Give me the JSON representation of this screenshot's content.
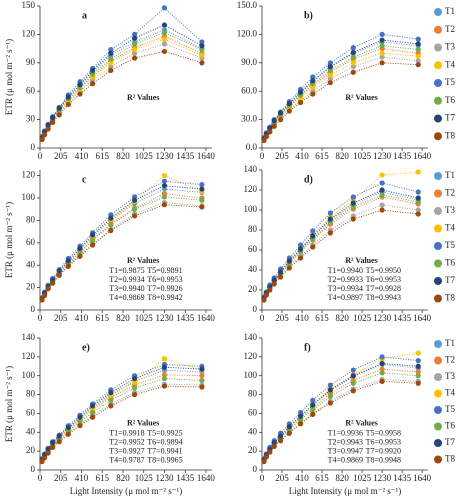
{
  "chart_data": [
    {
      "type": "scatter",
      "panel_label": "a",
      "ylabel": "ETR (μ mol m⁻² s⁻¹)",
      "r2_title": "R² Values",
      "x": [
        20,
        45,
        80,
        125,
        190,
        280,
        395,
        520,
        700,
        935,
        1230,
        1600
      ],
      "xlim": [
        0,
        1700
      ],
      "xticks": [
        0,
        205,
        410,
        615,
        820,
        1025,
        1230,
        1435,
        1640
      ],
      "ylim": [
        0,
        150
      ],
      "yticks": [
        0,
        30,
        60,
        90,
        120,
        150
      ],
      "series": [
        {
          "color": "#5b9bd5",
          "values": [
            11,
            17,
            24,
            32,
            41,
            53,
            66,
            80,
            98,
            112,
            125,
            105
          ]
        },
        {
          "color": "#ed7d31",
          "values": [
            10,
            16,
            23,
            30,
            39,
            51,
            63,
            76,
            92,
            106,
            118,
            100
          ]
        },
        {
          "color": "#a5a5a5",
          "values": [
            9,
            15,
            21,
            28,
            37,
            48,
            60,
            72,
            86,
            100,
            110,
            95
          ]
        },
        {
          "color": "#ffc000",
          "values": [
            10,
            16,
            22,
            30,
            38,
            50,
            62,
            75,
            90,
            104,
            115,
            98
          ]
        },
        {
          "color": "#4472c4",
          "values": [
            12,
            18,
            25,
            33,
            43,
            56,
            70,
            84,
            104,
            120,
            148,
            112
          ]
        },
        {
          "color": "#70ad47",
          "values": [
            10,
            16,
            23,
            31,
            40,
            52,
            64,
            78,
            94,
            110,
            122,
            104
          ]
        },
        {
          "color": "#264478",
          "values": [
            11,
            17,
            24,
            32,
            42,
            54,
            67,
            82,
            100,
            116,
            130,
            108
          ]
        },
        {
          "color": "#9e480e",
          "values": [
            9,
            14,
            20,
            27,
            35,
            46,
            57,
            68,
            82,
            95,
            102,
            90
          ]
        }
      ]
    },
    {
      "type": "scatter",
      "panel_label": "b)",
      "r2_title": "R² Values",
      "x": [
        20,
        45,
        80,
        125,
        190,
        280,
        395,
        520,
        700,
        935,
        1230,
        1600
      ],
      "xlim": [
        0,
        1700
      ],
      "xticks": [
        0,
        205,
        410,
        615,
        820,
        1025,
        1230,
        1435,
        1640
      ],
      "ylim": [
        0,
        150
      ],
      "yticks": [
        {
          "value": 0,
          "label": "0.0"
        },
        {
          "value": 30,
          "label": "30.0"
        },
        {
          "value": 60,
          "label": "60.0"
        },
        {
          "value": 90,
          "label": "90.0"
        },
        {
          "value": 120,
          "label": "120.0"
        },
        {
          "value": 150,
          "label": "150.0"
        }
      ],
      "series": [
        {
          "name": "T1",
          "color": "#5b9bd5",
          "values": [
            10,
            15,
            21,
            28,
            36,
            46,
            58,
            70,
            85,
            100,
            112,
            108
          ]
        },
        {
          "name": "T2",
          "color": "#ed7d31",
          "values": [
            9,
            14,
            20,
            27,
            34,
            44,
            55,
            66,
            80,
            94,
            105,
            100
          ]
        },
        {
          "name": "T3",
          "color": "#a5a5a5",
          "values": [
            8,
            13,
            18,
            25,
            32,
            41,
            50,
            60,
            73,
            86,
            96,
            92
          ]
        },
        {
          "name": "T4",
          "color": "#ffc000",
          "values": [
            9,
            14,
            19,
            26,
            33,
            43,
            53,
            64,
            77,
            90,
            100,
            97
          ]
        },
        {
          "name": "T5",
          "color": "#4472c4",
          "values": [
            11,
            16,
            22,
            30,
            38,
            49,
            62,
            75,
            90,
            106,
            120,
            115
          ]
        },
        {
          "name": "T6",
          "color": "#70ad47",
          "values": [
            9,
            15,
            20,
            27,
            35,
            45,
            56,
            68,
            82,
            96,
            108,
            104
          ]
        },
        {
          "name": "T7",
          "color": "#264478",
          "values": [
            10,
            15,
            21,
            29,
            37,
            47,
            59,
            71,
            86,
            101,
            114,
            110
          ]
        },
        {
          "name": "T8",
          "color": "#9e480e",
          "values": [
            8,
            12,
            17,
            23,
            30,
            39,
            48,
            57,
            69,
            80,
            90,
            88
          ]
        }
      ]
    },
    {
      "type": "scatter",
      "panel_label": "c",
      "ylabel": "ETR (μ mol m⁻² s⁻¹)",
      "r2_title": "R² Values",
      "r2_rows": [
        [
          "T1=0.9875",
          "T5=0.9891"
        ],
        [
          "T2=0.9934",
          "T6=0.9953"
        ],
        [
          "T3=0.9940",
          "T7=0.9926"
        ],
        [
          "T4=0.9869",
          "T8=0.9942"
        ]
      ],
      "x": [
        20,
        45,
        80,
        125,
        190,
        280,
        395,
        520,
        700,
        935,
        1230,
        1600
      ],
      "xlim": [
        0,
        1700
      ],
      "xticks": [
        0,
        205,
        410,
        615,
        820,
        1025,
        1230,
        1435,
        1640
      ],
      "ylim": [
        0,
        125
      ],
      "yticks": [
        0,
        20,
        40,
        60,
        80,
        100,
        120
      ],
      "series": [
        {
          "color": "#5b9bd5",
          "values": [
            10,
            15,
            21,
            27,
            34,
            43,
            54,
            65,
            80,
            95,
            108,
            105
          ]
        },
        {
          "color": "#ed7d31",
          "values": [
            9,
            14,
            20,
            26,
            33,
            42,
            52,
            63,
            77,
            91,
            104,
            100
          ]
        },
        {
          "color": "#a5a5a5",
          "values": [
            9,
            13,
            19,
            25,
            31,
            40,
            49,
            59,
            72,
            86,
            96,
            93
          ]
        },
        {
          "color": "#ffc000",
          "values": [
            10,
            15,
            21,
            27,
            34,
            43,
            54,
            66,
            81,
            97,
            120,
            106
          ]
        },
        {
          "color": "#4472c4",
          "values": [
            11,
            16,
            22,
            28,
            36,
            46,
            57,
            69,
            85,
            101,
            115,
            112
          ]
        },
        {
          "color": "#70ad47",
          "values": [
            9,
            14,
            20,
            26,
            32,
            41,
            51,
            62,
            76,
            90,
            101,
            98
          ]
        },
        {
          "color": "#264478",
          "values": [
            10,
            15,
            21,
            27,
            35,
            44,
            55,
            67,
            82,
            98,
            111,
            108
          ]
        },
        {
          "color": "#9e480e",
          "values": [
            9,
            13,
            19,
            24,
            31,
            39,
            48,
            58,
            71,
            84,
            94,
            92
          ]
        }
      ]
    },
    {
      "type": "scatter",
      "panel_label": "d)",
      "r2_title": "R² Values",
      "r2_rows": [
        [
          "T1=0.9940",
          "T5=0.9950"
        ],
        [
          "T2=0.9933",
          "T6=0.9953"
        ],
        [
          "T3=0.9934",
          "T7=0.9928"
        ],
        [
          "T4=0.9897",
          "T8=0.9943"
        ]
      ],
      "x": [
        20,
        45,
        80,
        125,
        190,
        280,
        395,
        520,
        700,
        935,
        1230,
        1600
      ],
      "xlim": [
        0,
        1700
      ],
      "xticks": [
        0,
        205,
        410,
        615,
        820,
        1025,
        1230,
        1435,
        1640
      ],
      "ylim": [
        0,
        140
      ],
      "yticks": [
        0,
        20,
        40,
        60,
        80,
        100,
        120,
        140
      ],
      "series": [
        {
          "name": "T1",
          "color": "#5b9bd5",
          "values": [
            12,
            17,
            23,
            30,
            38,
            48,
            60,
            73,
            90,
            105,
            118,
            110
          ]
        },
        {
          "name": "T2",
          "color": "#ed7d31",
          "values": [
            11,
            16,
            22,
            29,
            36,
            46,
            58,
            70,
            86,
            101,
            113,
            106
          ]
        },
        {
          "name": "T3",
          "color": "#a5a5a5",
          "values": [
            10,
            15,
            21,
            27,
            34,
            43,
            54,
            65,
            80,
            94,
            105,
            100
          ]
        },
        {
          "name": "T4",
          "color": "#ffc000",
          "values": [
            12,
            17,
            24,
            31,
            39,
            50,
            62,
            76,
            93,
            110,
            135,
            138
          ]
        },
        {
          "name": "T5",
          "color": "#4472c4",
          "values": [
            13,
            18,
            25,
            32,
            41,
            52,
            65,
            79,
            97,
            113,
            127,
            118
          ]
        },
        {
          "name": "T6",
          "color": "#70ad47",
          "values": [
            11,
            16,
            22,
            29,
            37,
            47,
            59,
            71,
            88,
            103,
            115,
            108
          ]
        },
        {
          "name": "T7",
          "color": "#264478",
          "values": [
            12,
            17,
            23,
            30,
            38,
            49,
            61,
            74,
            91,
            107,
            120,
            112
          ]
        },
        {
          "name": "T8",
          "color": "#9e480e",
          "values": [
            10,
            15,
            20,
            26,
            33,
            42,
            52,
            63,
            77,
            91,
            100,
            96
          ]
        }
      ]
    },
    {
      "type": "scatter",
      "panel_label": "e)",
      "ylabel": "ETR (μ mol m⁻² s⁻¹)",
      "xlabel": "Light Intensity (μ mol m⁻² s⁻¹)",
      "r2_title": "R² Values",
      "r2_rows": [
        [
          "T1=0.9918",
          "T5=0.9925"
        ],
        [
          "T2=0.9952",
          "T6=0.9894"
        ],
        [
          "T3=0.9927",
          "T7=0.9941"
        ],
        [
          "T4=0.9787",
          "T8=0.9965"
        ]
      ],
      "x": [
        20,
        45,
        80,
        125,
        190,
        280,
        395,
        520,
        700,
        935,
        1230,
        1600
      ],
      "xlim": [
        0,
        1700
      ],
      "xticks": [
        0,
        205,
        410,
        615,
        820,
        1025,
        1230,
        1435,
        1640
      ],
      "ylim": [
        0,
        140
      ],
      "yticks": [
        0,
        20,
        40,
        60,
        80,
        100,
        120,
        140
      ],
      "series": [
        {
          "color": "#5b9bd5",
          "values": [
            11,
            16,
            22,
            28,
            35,
            44,
            55,
            66,
            80,
            94,
            106,
            104
          ]
        },
        {
          "color": "#ed7d31",
          "values": [
            10,
            15,
            21,
            27,
            34,
            42,
            53,
            64,
            77,
            90,
            101,
            100
          ]
        },
        {
          "color": "#a5a5a5",
          "values": [
            9,
            14,
            19,
            25,
            31,
            39,
            48,
            58,
            70,
            82,
            91,
            90
          ]
        },
        {
          "color": "#ffc000",
          "values": [
            10,
            15,
            21,
            27,
            34,
            43,
            54,
            65,
            79,
            93,
            118,
            106
          ]
        },
        {
          "color": "#4472c4",
          "values": [
            12,
            17,
            23,
            30,
            37,
            47,
            58,
            70,
            85,
            100,
            112,
            110
          ]
        },
        {
          "color": "#70ad47",
          "values": [
            10,
            14,
            20,
            26,
            32,
            41,
            51,
            61,
            74,
            87,
            97,
            95
          ]
        },
        {
          "color": "#264478",
          "values": [
            11,
            16,
            22,
            29,
            36,
            45,
            56,
            68,
            82,
            97,
            109,
            107
          ]
        },
        {
          "color": "#9e480e",
          "values": [
            9,
            13,
            18,
            24,
            30,
            38,
            47,
            56,
            68,
            80,
            89,
            88
          ]
        }
      ]
    },
    {
      "type": "scatter",
      "panel_label": "f)",
      "xlabel": "Light Intensity (μ mol m⁻² s⁻¹)",
      "r2_title": "R² Values",
      "r2_rows": [
        [
          "T1=0.9936",
          "T5=0.9958"
        ],
        [
          "T2=0.9943",
          "T6=0.9953"
        ],
        [
          "T3=0.9947",
          "T7=0.9920"
        ],
        [
          "T4=0.9869",
          "T8=0.9948"
        ]
      ],
      "x": [
        20,
        45,
        80,
        125,
        190,
        280,
        395,
        520,
        700,
        935,
        1230,
        1600
      ],
      "xlim": [
        0,
        1700
      ],
      "xticks": [
        0,
        205,
        410,
        615,
        820,
        1025,
        1230,
        1435,
        1640
      ],
      "ylim": [
        0,
        140
      ],
      "yticks": [
        0,
        20,
        40,
        60,
        80,
        100,
        120,
        140
      ],
      "series": [
        {
          "name": "T1",
          "color": "#5b9bd5",
          "values": [
            11,
            16,
            22,
            29,
            36,
            46,
            57,
            69,
            84,
            99,
            112,
            108
          ]
        },
        {
          "name": "T2",
          "color": "#ed7d31",
          "values": [
            10,
            15,
            21,
            28,
            35,
            44,
            55,
            66,
            81,
            95,
            107,
            104
          ]
        },
        {
          "name": "T3",
          "color": "#a5a5a5",
          "values": [
            9,
            14,
            19,
            25,
            32,
            40,
            50,
            60,
            73,
            86,
            96,
            94
          ]
        },
        {
          "name": "T4",
          "color": "#ffc000",
          "values": [
            11,
            16,
            22,
            29,
            37,
            46,
            58,
            70,
            86,
            101,
            118,
            124
          ]
        },
        {
          "name": "T5",
          "color": "#4472c4",
          "values": [
            12,
            17,
            24,
            31,
            39,
            49,
            61,
            74,
            90,
            106,
            120,
            116
          ]
        },
        {
          "name": "T6",
          "color": "#70ad47",
          "values": [
            10,
            15,
            20,
            27,
            34,
            43,
            53,
            64,
            78,
            92,
            103,
            100
          ]
        },
        {
          "name": "T7",
          "color": "#264478",
          "values": [
            11,
            16,
            22,
            29,
            36,
            46,
            57,
            69,
            85,
            100,
            113,
            110
          ]
        },
        {
          "name": "T8",
          "color": "#9e480e",
          "values": [
            9,
            14,
            19,
            25,
            31,
            39,
            49,
            59,
            71,
            84,
            94,
            92
          ]
        }
      ]
    }
  ]
}
